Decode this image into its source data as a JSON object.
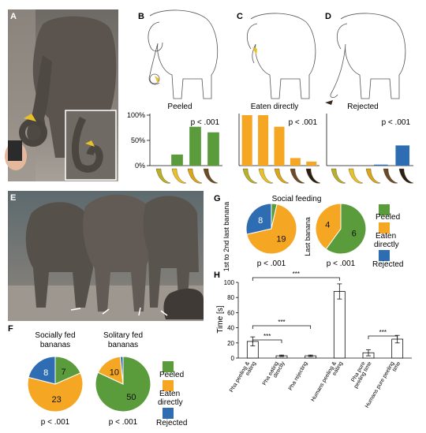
{
  "colors": {
    "peeled": "#5a9b3b",
    "eaten": "#f5a623",
    "rejected": "#2f6db3",
    "axis": "#111111",
    "banana_ripe": "#e8c02a",
    "banana_brown": "#3a2a1e"
  },
  "panel_letters": {
    "A": "A",
    "B": "B",
    "C": "C",
    "D": "D",
    "E": "E",
    "F": "F",
    "G": "G",
    "H": "H"
  },
  "bcd": {
    "ytick_labels": [
      "100%",
      "50%",
      "0%"
    ],
    "panels": [
      {
        "title": "Peeled",
        "pvalue": "p < .001",
        "color_key": "peeled",
        "chart_data": {
          "type": "bar",
          "categories": [
            "green",
            "yellow",
            "spotted",
            "brown"
          ],
          "values": [
            0,
            22,
            77,
            66
          ],
          "ylim": [
            0,
            100
          ]
        }
      },
      {
        "title": "Eaten directly",
        "pvalue": "p < .001",
        "color_key": "eaten",
        "chart_data": {
          "type": "bar",
          "categories": [
            "green",
            "yellow",
            "spotted",
            "brown",
            "black"
          ],
          "values": [
            100,
            100,
            77,
            15,
            8
          ],
          "ylim": [
            0,
            100
          ]
        }
      },
      {
        "title": "Rejected",
        "pvalue": "p < .001",
        "color_key": "rejected",
        "chart_data": {
          "type": "bar",
          "categories": [
            "green",
            "yellow",
            "spotted",
            "brown"
          ],
          "values": [
            0,
            0,
            2,
            40
          ],
          "ylim": [
            0,
            100
          ]
        }
      }
    ]
  },
  "g": {
    "title": "Social feeding",
    "left_ylabel": "1st to 2nd last banana",
    "right_ylabel": "Last banana",
    "left_p": "p < .001",
    "right_p": "p < .001",
    "legend": {
      "peeled": "Peeled",
      "eaten_line1": "Eaten",
      "eaten_line2": "directly",
      "rejected": "Rejected"
    },
    "chart_data": [
      {
        "type": "pie",
        "labels": [
          "Peeled",
          "Eaten directly",
          "Rejected"
        ],
        "values": [
          1,
          19,
          8
        ],
        "shown_labels": [
          "",
          "19",
          "8"
        ]
      },
      {
        "type": "pie",
        "labels": [
          "Peeled",
          "Eaten directly",
          "Rejected"
        ],
        "values": [
          6,
          4,
          0
        ],
        "shown_labels": [
          "6",
          "4",
          ""
        ]
      }
    ]
  },
  "f": {
    "left_title": [
      "Socially fed",
      "bananas"
    ],
    "right_title": [
      "Solitary fed",
      "bananas"
    ],
    "left_p": "p < .001",
    "right_p": "p < .001",
    "legend": {
      "peeled": "Peeled",
      "eaten_line1": "Eaten",
      "eaten_line2": "directly",
      "rejected": "Rejected"
    },
    "chart_data": [
      {
        "type": "pie",
        "labels": [
          "Peeled",
          "Eaten directly",
          "Rejected"
        ],
        "values": [
          7,
          23,
          8
        ],
        "shown_labels": [
          "7",
          "23",
          "8"
        ]
      },
      {
        "type": "pie",
        "labels": [
          "Peeled",
          "Eaten directly",
          "Rejected"
        ],
        "values": [
          50,
          10,
          1
        ],
        "shown_labels": [
          "50",
          "10",
          ""
        ]
      }
    ]
  },
  "h": {
    "ylabel": "Time [s]",
    "sig": "***",
    "yticks": [
      "100",
      "80",
      "60",
      "40",
      "20",
      "0"
    ],
    "chart_data": {
      "type": "bar",
      "categories": [
        "Pha peeling & eating",
        "Pha eating directly",
        "Pha rejecting",
        "Humans peeling & eating",
        "Pha pure peeling time",
        "Humans pure peeling time"
      ],
      "values": [
        22,
        3,
        3,
        88,
        7,
        25
      ],
      "errors": [
        6,
        1,
        1,
        10,
        4,
        5
      ],
      "ylim": [
        0,
        100
      ]
    },
    "tick_lines": [
      [
        "Pha peeling &",
        "eating"
      ],
      [
        "Pha eating",
        "directly"
      ],
      [
        "Pha rejecting"
      ],
      [
        "Humans peeling &",
        "eating"
      ],
      [
        "Pha pure",
        "peeling time"
      ],
      [
        "Humans pure peeling",
        "time"
      ]
    ]
  }
}
